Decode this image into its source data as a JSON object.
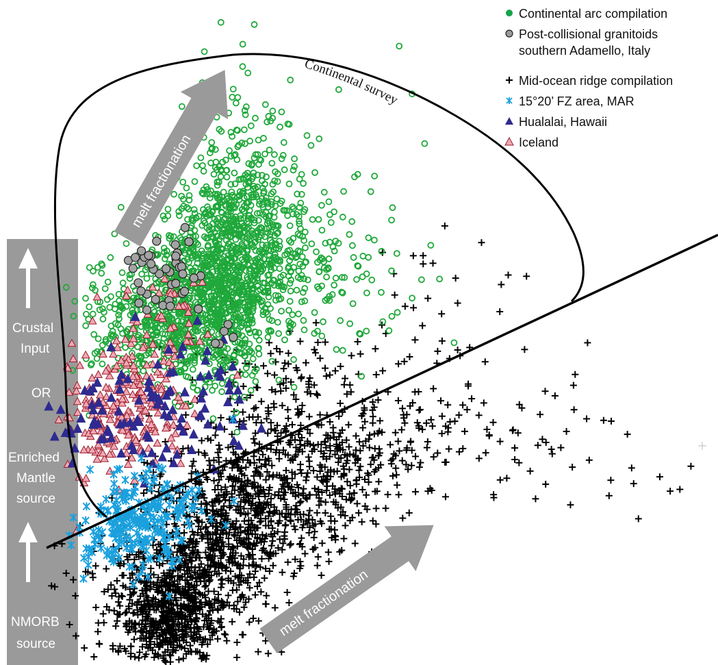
{
  "legend": {
    "items": [
      {
        "label": "Continental arc compilation",
        "symbol": "filled-circle",
        "color": "#16a34a"
      },
      {
        "label": "Post-collisional granitoids",
        "label2": "southern Adamello, Italy",
        "symbol": "grey-circle",
        "color": "#9a9a9a"
      },
      {
        "label": "Mid-ocean ridge compilation",
        "symbol": "plus",
        "color": "#000000"
      },
      {
        "label": "15°20’ FZ area, MAR",
        "symbol": "asterisk",
        "color": "#1aa0dd"
      },
      {
        "label": "Hualalai, Hawaii",
        "symbol": "triangle",
        "color": "#2b2b8c"
      },
      {
        "label": "Iceland",
        "symbol": "triangle",
        "color": "#e98c9a"
      }
    ]
  },
  "annotations": {
    "continental_survey": "Continental survey",
    "melt_fractionation_upper": "melt fractionation",
    "melt_fractionation_lower": "melt fractionation",
    "side_panel": [
      "Crustal",
      "Input",
      "OR",
      "Enriched",
      "Mantle",
      "source",
      "NMORB",
      "source"
    ]
  },
  "colors": {
    "continental_arc": "#1fa83a",
    "post_collisional_fill": "#a3a3a3",
    "mid_ocean_ridge": "#000000",
    "fz_area": "#1aa0dd",
    "hualalai": "#2e2a8f",
    "iceland_fill": "#f0a8b4",
    "iceland_edge": "#9b1c2a",
    "arrow_fill": "#9a9a9a",
    "side_panel_fill": "#9a9a9a"
  },
  "chart_data": {
    "type": "scatter",
    "title": "",
    "xlabel": "",
    "ylabel": "",
    "series": [
      {
        "name": "Continental arc compilation",
        "marker": "open-circle",
        "n_points": 2000
      },
      {
        "name": "Post-collisional granitoids southern Adamello, Italy",
        "marker": "grey-circle",
        "n_points": 45
      },
      {
        "name": "Mid-ocean ridge compilation",
        "marker": "plus",
        "n_points": 2200
      },
      {
        "name": "15°20’ FZ area, MAR",
        "marker": "asterisk",
        "n_points": 260
      },
      {
        "name": "Hualalai, Hawaii",
        "marker": "triangle",
        "n_points": 110
      },
      {
        "name": "Iceland",
        "marker": "triangle",
        "n_points": 280
      }
    ]
  }
}
